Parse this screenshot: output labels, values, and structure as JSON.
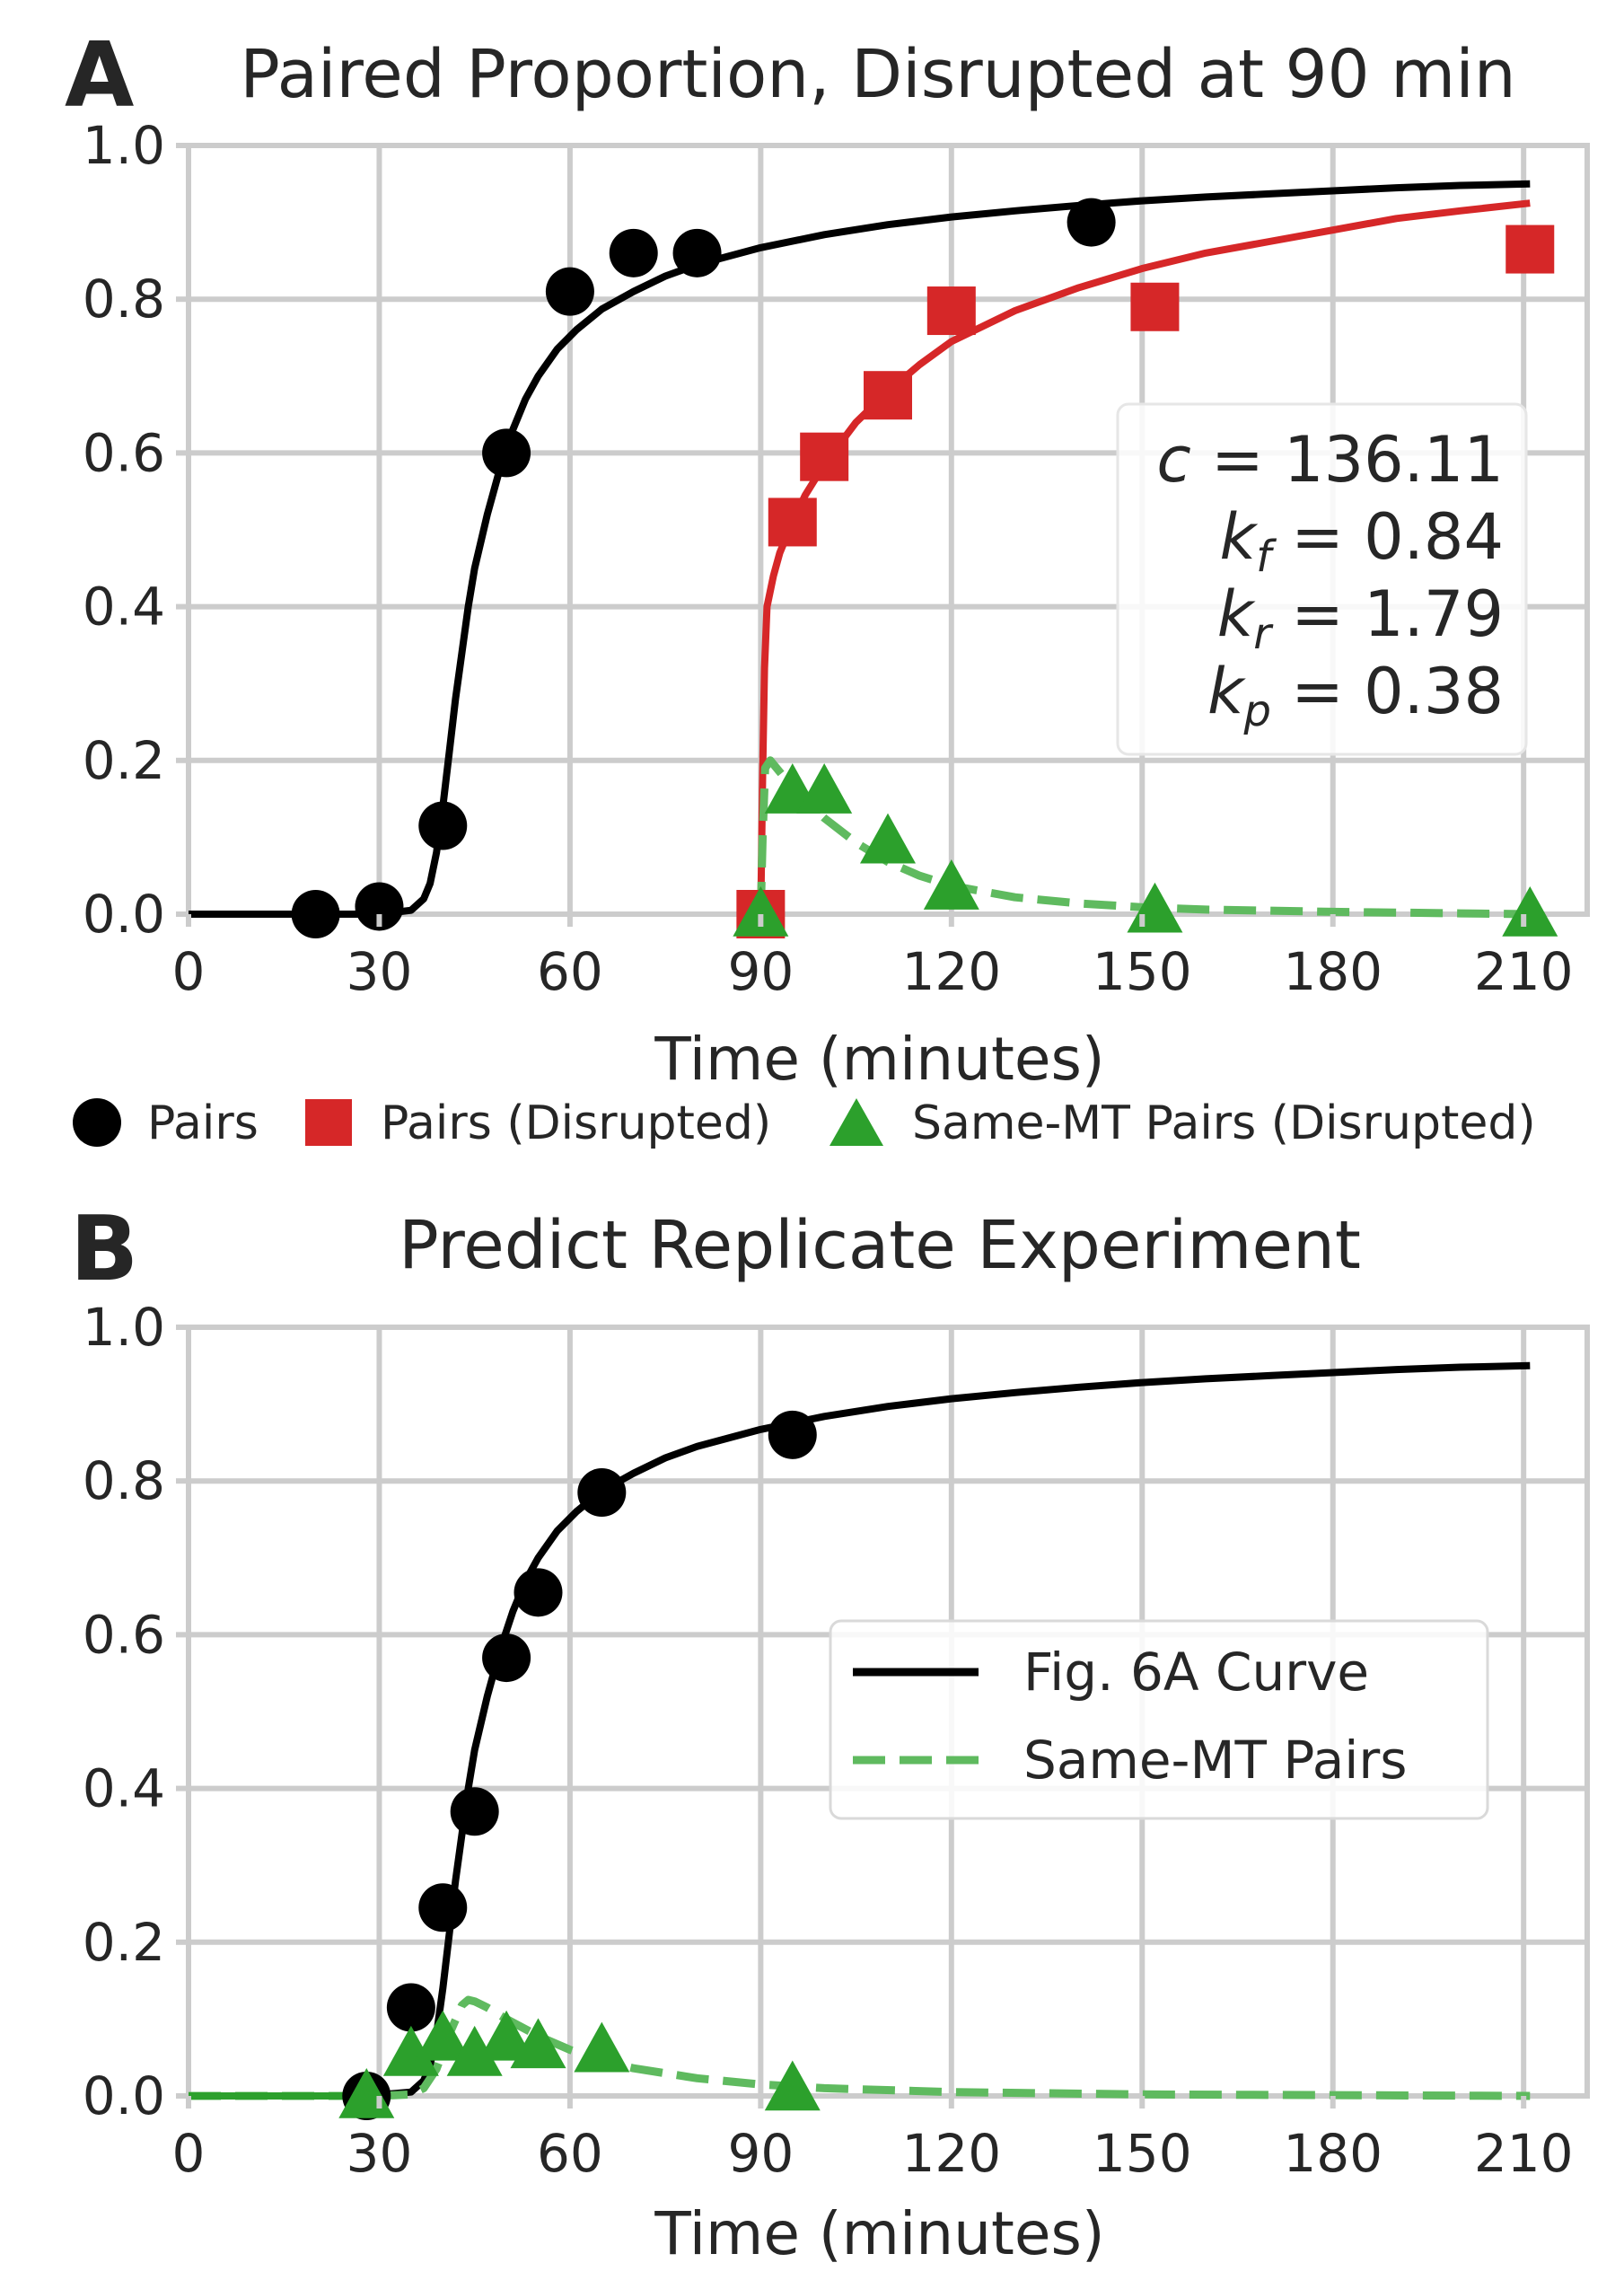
{
  "chart_data": [
    {
      "type": "scatter",
      "panel_letter": "A",
      "title": "Paired Proportion, Disrupted at 90 min",
      "xlabel": "Time (minutes)",
      "ylabel": "",
      "xlim": [
        0,
        220
      ],
      "ylim": [
        0,
        1.0
      ],
      "xticks": [
        0,
        30,
        60,
        90,
        120,
        150,
        180,
        210
      ],
      "yticks": [
        0.0,
        0.2,
        0.4,
        0.6,
        0.8,
        1.0
      ],
      "grid": true,
      "legend_position": "below-axes",
      "param_box": {
        "position": "right-middle",
        "lines": [
          {
            "sym": "c",
            "sub": "",
            "value": " = 136.11"
          },
          {
            "sym": "k",
            "sub": "f",
            "value": " = 0.84"
          },
          {
            "sym": "k",
            "sub": "r",
            "value": " = 1.79"
          },
          {
            "sym": "k",
            "sub": "p",
            "value": " = 0.38"
          }
        ]
      },
      "series": [
        {
          "name": "Pairs",
          "kind": "points",
          "marker": "circle",
          "color": "#000000",
          "x": [
            20,
            30,
            40,
            50,
            60,
            70,
            80,
            142
          ],
          "y": [
            0.0,
            0.01,
            0.115,
            0.6,
            0.81,
            0.86,
            0.86,
            0.9
          ]
        },
        {
          "name": "Pairs (Disrupted)",
          "kind": "points",
          "marker": "square",
          "color": "#d62728",
          "x": [
            90,
            95,
            100,
            110,
            120,
            152,
            211
          ],
          "y": [
            0.0,
            0.51,
            0.595,
            0.675,
            0.785,
            0.79,
            0.865
          ]
        },
        {
          "name": "Same-MT Pairs (Disrupted)",
          "kind": "points",
          "marker": "triangle",
          "color": "#2ca02c",
          "x": [
            90,
            95,
            100,
            110,
            120,
            152,
            211
          ],
          "y": [
            0.0,
            0.16,
            0.16,
            0.095,
            0.035,
            0.005,
            0.0
          ]
        },
        {
          "kind": "line",
          "style": "solid",
          "color": "#000000",
          "x": [
            0,
            20,
            30,
            35,
            37,
            38,
            39,
            40,
            41,
            42,
            43,
            44,
            45,
            47,
            49,
            51,
            53,
            55,
            58,
            61,
            65,
            70,
            75,
            80,
            90,
            100,
            110,
            120,
            130,
            140,
            150,
            160,
            170,
            180,
            190,
            200,
            211
          ],
          "y": [
            0.0,
            0.0,
            0.0,
            0.005,
            0.02,
            0.04,
            0.08,
            0.14,
            0.21,
            0.28,
            0.34,
            0.4,
            0.45,
            0.52,
            0.58,
            0.63,
            0.67,
            0.7,
            0.735,
            0.76,
            0.787,
            0.81,
            0.83,
            0.845,
            0.867,
            0.884,
            0.897,
            0.907,
            0.915,
            0.922,
            0.928,
            0.933,
            0.937,
            0.941,
            0.945,
            0.948,
            0.95
          ]
        },
        {
          "kind": "line",
          "style": "solid",
          "color": "#d62728",
          "x": [
            90,
            90.3,
            90.6,
            91,
            92,
            93,
            95,
            97,
            100,
            105,
            110,
            115,
            120,
            130,
            140,
            150,
            160,
            170,
            180,
            190,
            200,
            211
          ],
          "y": [
            0.0,
            0.18,
            0.32,
            0.4,
            0.44,
            0.47,
            0.51,
            0.545,
            0.585,
            0.64,
            0.68,
            0.715,
            0.745,
            0.785,
            0.815,
            0.84,
            0.86,
            0.875,
            0.89,
            0.905,
            0.915,
            0.925
          ]
        },
        {
          "kind": "line",
          "style": "dashed",
          "color": "#5fba5f",
          "x": [
            90,
            90.3,
            90.7,
            91.5,
            93,
            95,
            97,
            100,
            105,
            110,
            115,
            120,
            130,
            140,
            150,
            160,
            180,
            200,
            211
          ],
          "y": [
            0.0,
            0.1,
            0.19,
            0.2,
            0.185,
            0.165,
            0.148,
            0.125,
            0.093,
            0.068,
            0.05,
            0.037,
            0.022,
            0.014,
            0.009,
            0.006,
            0.003,
            0.001,
            0.0
          ]
        }
      ]
    },
    {
      "type": "scatter",
      "panel_letter": "B",
      "title": "Predict Replicate Experiment",
      "xlabel": "Time (minutes)",
      "ylabel": "",
      "xlim": [
        0,
        220
      ],
      "ylim": [
        0,
        1.0
      ],
      "xticks": [
        0,
        30,
        60,
        90,
        120,
        150,
        180,
        210
      ],
      "yticks": [
        0.0,
        0.2,
        0.4,
        0.6,
        0.8,
        1.0
      ],
      "grid": true,
      "legend_position": "center-right",
      "series": [
        {
          "kind": "points",
          "marker": "circle",
          "color": "#000000",
          "x": [
            28,
            35,
            40,
            45,
            50,
            55,
            65,
            95
          ],
          "y": [
            0.0,
            0.115,
            0.245,
            0.37,
            0.57,
            0.655,
            0.785,
            0.86
          ]
        },
        {
          "kind": "points",
          "marker": "triangle",
          "color": "#2ca02c",
          "x": [
            28,
            35,
            40,
            45,
            50,
            55,
            65,
            95
          ],
          "y": [
            0.0,
            0.055,
            0.075,
            0.055,
            0.075,
            0.065,
            0.06,
            0.01
          ]
        },
        {
          "name": "Fig. 6A Curve",
          "kind": "line",
          "style": "solid",
          "color": "#000000",
          "x": [
            0,
            28,
            35,
            37,
            38,
            39,
            40,
            41,
            42,
            43,
            44,
            45,
            47,
            49,
            51,
            53,
            55,
            58,
            61,
            65,
            70,
            75,
            80,
            90,
            100,
            110,
            120,
            130,
            140,
            150,
            160,
            170,
            180,
            190,
            200,
            211
          ],
          "y": [
            0.0,
            0.0,
            0.005,
            0.02,
            0.04,
            0.08,
            0.14,
            0.21,
            0.28,
            0.34,
            0.4,
            0.45,
            0.52,
            0.58,
            0.63,
            0.67,
            0.7,
            0.735,
            0.76,
            0.787,
            0.81,
            0.83,
            0.845,
            0.867,
            0.884,
            0.897,
            0.907,
            0.915,
            0.922,
            0.928,
            0.933,
            0.937,
            0.941,
            0.945,
            0.948,
            0.95
          ]
        },
        {
          "name": "Same-MT Pairs",
          "kind": "line",
          "style": "dashed",
          "color": "#5fba5f",
          "x": [
            0,
            30,
            35,
            37,
            39,
            41,
            43,
            44,
            45,
            47,
            50,
            55,
            60,
            65,
            70,
            80,
            90,
            100,
            120,
            150,
            180,
            211
          ],
          "y": [
            0.0,
            0.0,
            0.002,
            0.01,
            0.035,
            0.08,
            0.118,
            0.125,
            0.123,
            0.115,
            0.1,
            0.078,
            0.06,
            0.046,
            0.036,
            0.023,
            0.015,
            0.01,
            0.005,
            0.002,
            0.001,
            0.0
          ]
        },
        {
          "kind": "line",
          "style": "solid",
          "color": "#2ca02c",
          "x": [
            0,
            28
          ],
          "y": [
            0.0,
            0.0
          ]
        }
      ]
    }
  ]
}
